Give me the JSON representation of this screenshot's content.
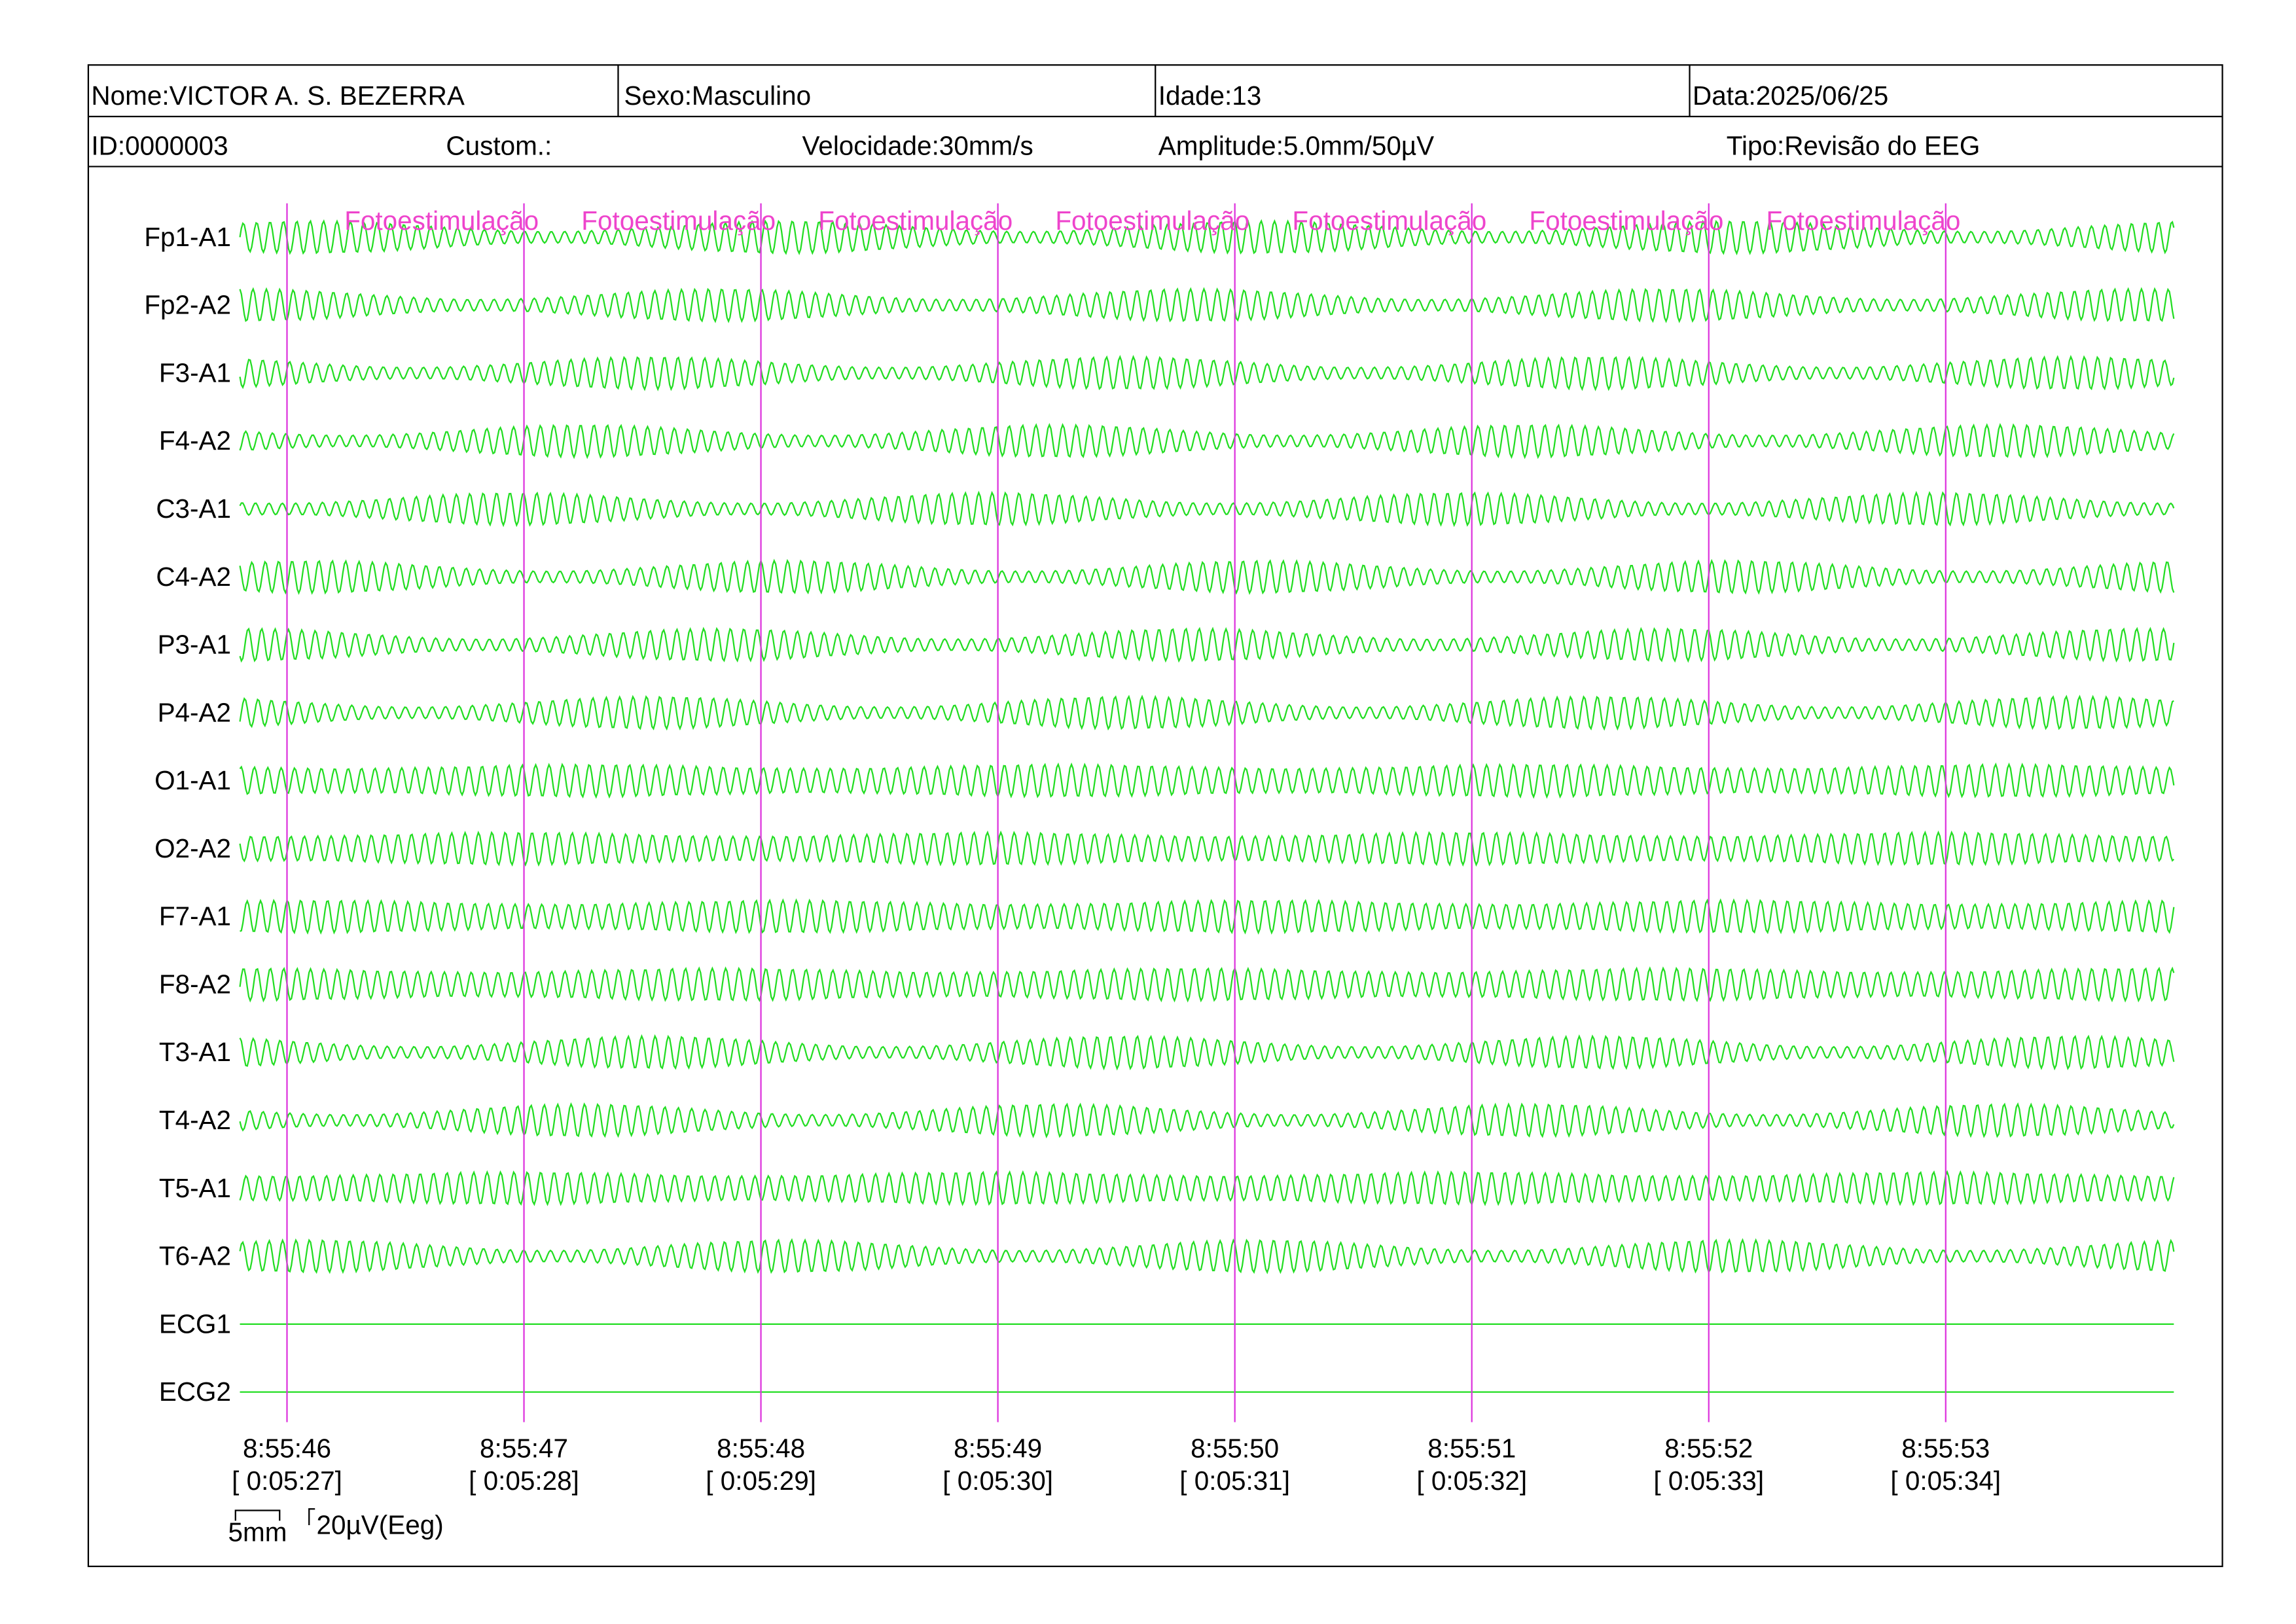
{
  "header": {
    "row1": [
      "Nome:VICTOR A. S. BEZERRA",
      "Sexo:Masculino",
      "Idade:13",
      "Data:2025/06/25"
    ],
    "row2": [
      "ID:0000003",
      "Custom.:",
      "Velocidade:30mm/s",
      "Amplitude:5.0mm/50µV",
      "Tipo:Revisão do EEG"
    ]
  },
  "channels": [
    "Fp1-A1",
    "Fp2-A2",
    "F3-A1",
    "F4-A2",
    "C3-A1",
    "C4-A2",
    "P3-A1",
    "P4-A2",
    "O1-A1",
    "O2-A2",
    "F7-A1",
    "F8-A2",
    "T3-A1",
    "T4-A2",
    "T5-A1",
    "T6-A2",
    "ECG1",
    "ECG2"
  ],
  "markers": [
    "Fotoestimulação",
    "Fotoestimulação",
    "Fotoestimulação",
    "Fotoestimulação",
    "Fotoestimulação",
    "Fotoestimulação",
    "Fotoestimulação"
  ],
  "time_labels": [
    {
      "clock": "8:55:46",
      "elapsed": "[ 0:05:27]"
    },
    {
      "clock": "8:55:47",
      "elapsed": "[ 0:05:28]"
    },
    {
      "clock": "8:55:48",
      "elapsed": "[ 0:05:29]"
    },
    {
      "clock": "8:55:49",
      "elapsed": "[ 0:05:30]"
    },
    {
      "clock": "8:55:50",
      "elapsed": "[ 0:05:31]"
    },
    {
      "clock": "8:55:51",
      "elapsed": "[ 0:05:32]"
    },
    {
      "clock": "8:55:52",
      "elapsed": "[ 0:05:33]"
    },
    {
      "clock": "8:55:53",
      "elapsed": "[ 0:05:34]"
    }
  ],
  "scale": {
    "length": "5mm",
    "amplitude": "20µV(Eeg)"
  }
}
